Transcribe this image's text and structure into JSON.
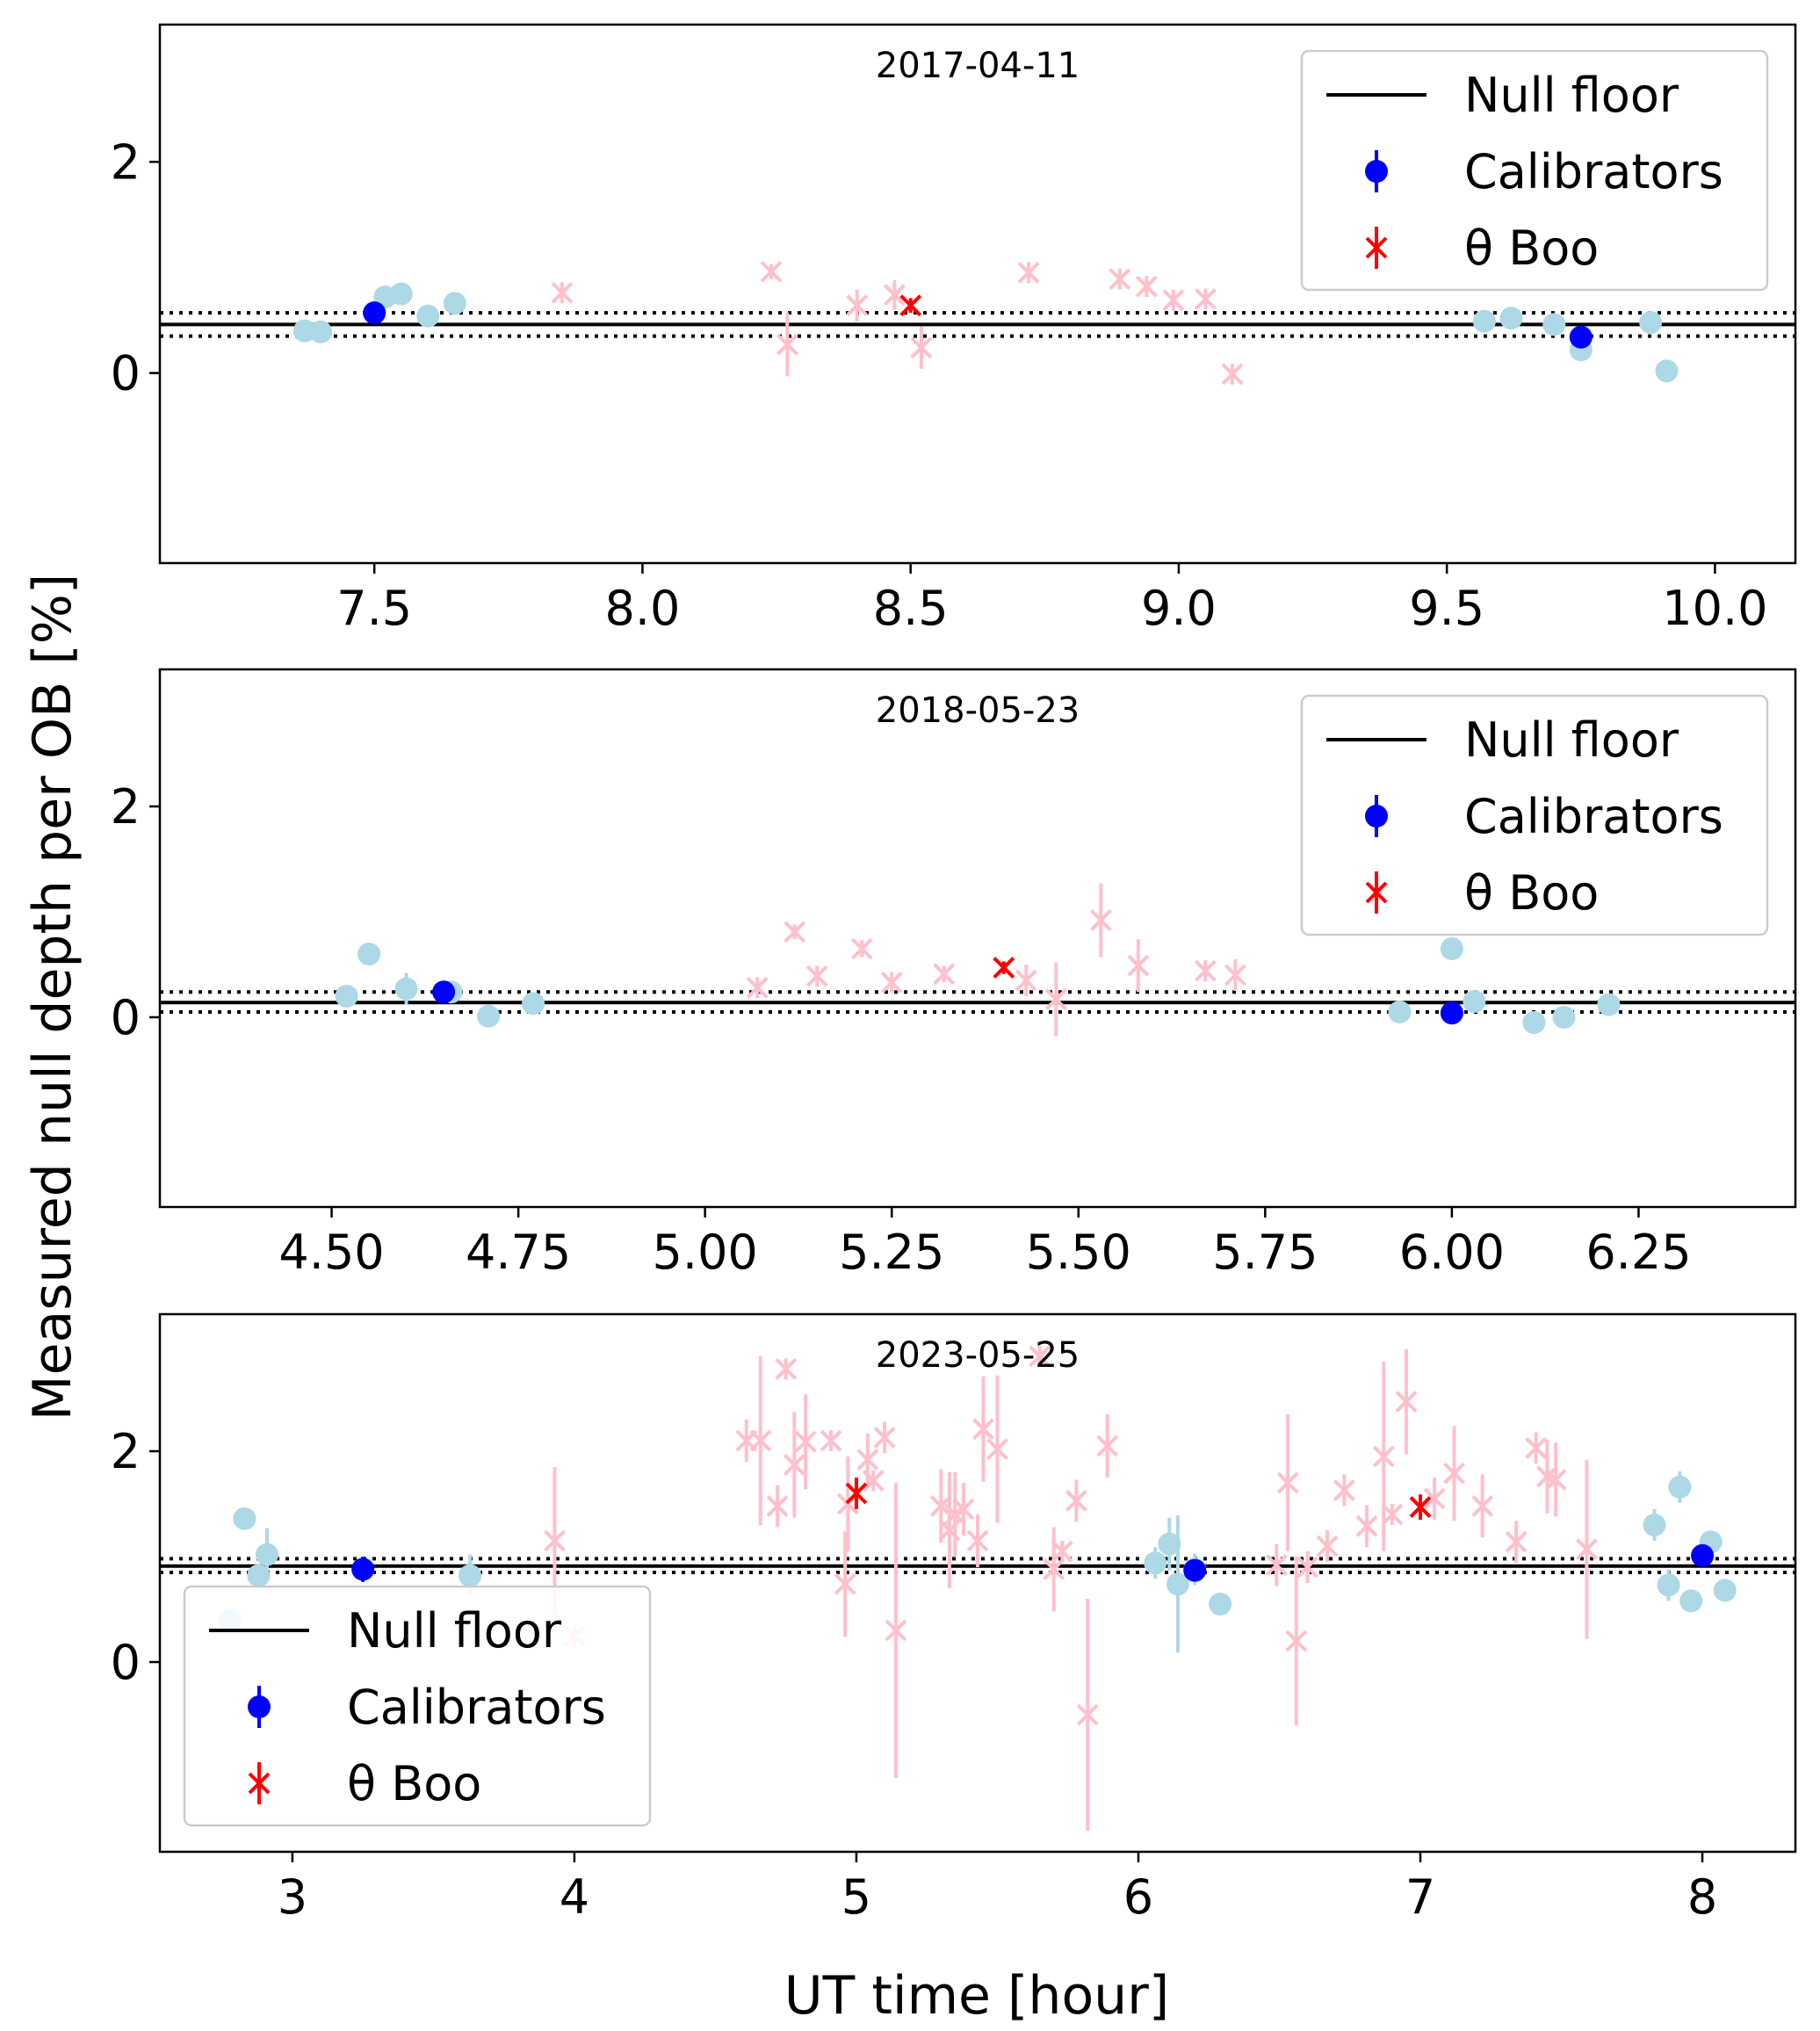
{
  "figure": {
    "ylabel": "Measured null depth per OB [%]",
    "xlabel": "UT time [hour]"
  },
  "legend": {
    "null_floor": "Null floor",
    "calibrators": "Calibrators",
    "target": "θ Boo"
  },
  "colors": {
    "calibrator": "#0000ff",
    "calibrator_faded": "#add8e6",
    "target": "#ff0000",
    "target_faded": "#ffc0cb",
    "floor": "#000000"
  },
  "chart_data": [
    {
      "type": "scatter",
      "title": "2017-04-11",
      "xlim": [
        7.1,
        10.15
      ],
      "ylim": [
        -1.8,
        3.3
      ],
      "xticks": [
        7.5,
        8.0,
        8.5,
        9.0,
        9.5,
        10.0
      ],
      "xtick_labels": [
        "7.5",
        "8.0",
        "8.5",
        "9.0",
        "9.5",
        "10.0"
      ],
      "yticks": [
        0,
        2
      ],
      "ytick_labels": [
        "0",
        "2"
      ],
      "legend_position": "top-right",
      "null_floor": {
        "value": 0.46,
        "lower": 0.35,
        "upper": 0.57
      },
      "series": [
        {
          "name": "Calibrators",
          "role": "calibrator",
          "faded": true,
          "marker": "o",
          "x": [
            7.37,
            7.4,
            7.52,
            7.55,
            7.6,
            7.65,
            9.57,
            9.62,
            9.7,
            9.75,
            9.88,
            9.91
          ],
          "y": [
            0.4,
            0.39,
            0.72,
            0.75,
            0.54,
            0.66,
            0.49,
            0.52,
            0.46,
            0.22,
            0.48,
            0.02
          ],
          "err": [
            0.06,
            0.05,
            0.05,
            0.05,
            0.06,
            0.05,
            0.05,
            0.05,
            0.05,
            0.05,
            0.05,
            0.05
          ]
        },
        {
          "name": "θ Boo",
          "role": "target",
          "faded": true,
          "marker": "x",
          "x": [
            7.85,
            8.24,
            8.27,
            8.4,
            8.47,
            8.52,
            8.72,
            8.89,
            8.94,
            8.99,
            9.05,
            9.1
          ],
          "y": [
            0.76,
            0.96,
            0.27,
            0.64,
            0.74,
            0.24,
            0.95,
            0.89,
            0.82,
            0.69,
            0.7,
            -0.01
          ],
          "err": [
            0.1,
            0.07,
            0.3,
            0.15,
            0.14,
            0.2,
            0.1,
            0.1,
            0.1,
            0.1,
            0.1,
            0.1
          ]
        },
        {
          "name": "Calibrators",
          "role": "calibrator",
          "faded": false,
          "marker": "o",
          "x": [
            7.5,
            9.75
          ],
          "y": [
            0.57,
            0.34
          ],
          "err": [
            0.04,
            0.05
          ]
        },
        {
          "name": "θ Boo",
          "role": "target",
          "faded": false,
          "marker": "x",
          "x": [
            8.5
          ],
          "y": [
            0.64
          ],
          "err": [
            0.07
          ]
        }
      ]
    },
    {
      "type": "scatter",
      "title": "2018-05-23",
      "xlim": [
        4.27,
        6.46
      ],
      "ylim": [
        -1.8,
        3.3
      ],
      "xticks": [
        4.5,
        4.75,
        5.0,
        5.25,
        5.5,
        5.75,
        6.0,
        6.25
      ],
      "xtick_labels": [
        "4.50",
        "4.75",
        "5.00",
        "5.25",
        "5.50",
        "5.75",
        "6.00",
        "6.25"
      ],
      "yticks": [
        0,
        2
      ],
      "ytick_labels": [
        "0",
        "2"
      ],
      "legend_position": "top-right",
      "null_floor": {
        "value": 0.14,
        "lower": 0.05,
        "upper": 0.24
      },
      "series": [
        {
          "name": "Calibrators",
          "role": "calibrator",
          "faded": true,
          "marker": "o",
          "x": [
            4.52,
            4.55,
            4.6,
            4.66,
            4.71,
            4.77,
            5.93,
            6.0,
            6.03,
            6.11,
            6.15,
            6.21
          ],
          "y": [
            0.2,
            0.6,
            0.27,
            0.24,
            0.01,
            0.13,
            0.05,
            0.65,
            0.15,
            -0.05,
            0.0,
            0.12
          ],
          "err": [
            0.05,
            0.07,
            0.15,
            0.05,
            0.1,
            0.06,
            0.05,
            0.05,
            0.08,
            0.05,
            0.05,
            0.06
          ]
        },
        {
          "name": "θ Boo",
          "role": "target",
          "faded": true,
          "marker": "x",
          "x": [
            5.07,
            5.12,
            5.15,
            5.21,
            5.25,
            5.32,
            5.43,
            5.47,
            5.53,
            5.58,
            5.67,
            5.71
          ],
          "y": [
            0.28,
            0.81,
            0.39,
            0.65,
            0.33,
            0.41,
            0.35,
            0.17,
            0.92,
            0.49,
            0.44,
            0.4
          ],
          "err": [
            0.1,
            0.07,
            0.1,
            0.08,
            0.1,
            0.08,
            0.15,
            0.35,
            0.35,
            0.25,
            0.1,
            0.15
          ]
        },
        {
          "name": "Calibrators",
          "role": "calibrator",
          "faded": false,
          "marker": "o",
          "x": [
            4.65,
            6.0
          ],
          "y": [
            0.24,
            0.04
          ],
          "err": [
            0.04,
            0.04
          ]
        },
        {
          "name": "θ Boo",
          "role": "target",
          "faded": false,
          "marker": "x",
          "x": [
            5.4
          ],
          "y": [
            0.47
          ],
          "err": [
            0.06
          ]
        }
      ]
    },
    {
      "type": "scatter",
      "title": "2023-05-25",
      "xlim": [
        2.53,
        8.33
      ],
      "ylim": [
        -1.8,
        3.3
      ],
      "xticks": [
        3,
        4,
        5,
        6,
        7,
        8
      ],
      "xtick_labels": [
        "3",
        "4",
        "5",
        "6",
        "7",
        "8"
      ],
      "yticks": [
        0,
        2
      ],
      "ytick_labels": [
        "0",
        "2"
      ],
      "legend_position": "bottom-left",
      "null_floor": {
        "value": 0.91,
        "lower": 0.85,
        "upper": 0.98
      },
      "series": [
        {
          "name": "Calibrators",
          "role": "calibrator",
          "faded": true,
          "marker": "o",
          "x": [
            2.78,
            2.83,
            2.88,
            2.91,
            3.63,
            6.06,
            6.11,
            6.14,
            6.2,
            6.29,
            7.83,
            7.88,
            7.92,
            7.96,
            8.03,
            8.08
          ],
          "y": [
            0.4,
            1.36,
            0.82,
            1.02,
            0.82,
            0.94,
            1.12,
            0.74,
            0.88,
            0.55,
            1.3,
            0.73,
            1.66,
            0.58,
            1.14,
            0.68
          ],
          "err": [
            0.1,
            0.08,
            0.08,
            0.25,
            0.2,
            0.15,
            0.25,
            0.65,
            0.15,
            0.07,
            0.15,
            0.15,
            0.15,
            0.07,
            0.07,
            0.07
          ]
        },
        {
          "name": "θ Boo",
          "role": "target",
          "faded": true,
          "marker": "x",
          "x": [
            3.93,
            4.0,
            4.61,
            4.66,
            4.72,
            4.75,
            4.78,
            4.82,
            4.91,
            4.96,
            4.97,
            5.04,
            5.06,
            5.1,
            5.14,
            5.3,
            5.33,
            5.35,
            5.38,
            5.43,
            5.45,
            5.5,
            5.65,
            5.7,
            5.73,
            5.78,
            5.82,
            5.89,
            6.49,
            6.53,
            6.56,
            6.6,
            6.67,
            6.73,
            6.81,
            6.87,
            6.9,
            6.95,
            7.05,
            7.12,
            7.22,
            7.34,
            7.41,
            7.45,
            7.48,
            7.59
          ],
          "y": [
            1.15,
            0.25,
            2.1,
            2.1,
            1.48,
            2.78,
            1.87,
            2.09,
            2.1,
            0.74,
            1.5,
            1.92,
            1.72,
            2.13,
            0.3,
            1.48,
            1.25,
            1.4,
            1.45,
            1.15,
            2.21,
            2.02,
            2.9,
            0.88,
            1.05,
            1.53,
            -0.5,
            2.05,
            0.92,
            1.7,
            0.2,
            0.9,
            1.1,
            1.63,
            1.29,
            1.95,
            1.4,
            2.47,
            1.55,
            1.79,
            1.48,
            1.14,
            2.03,
            1.76,
            1.73,
            1.07
          ],
          "err": [
            0.7,
            0.1,
            0.2,
            0.8,
            0.2,
            0.1,
            0.5,
            0.45,
            0.1,
            0.5,
            0.45,
            0.25,
            0.1,
            0.15,
            1.4,
            0.35,
            0.55,
            0.4,
            0.25,
            0.25,
            0.5,
            0.7,
            0.1,
            0.4,
            0.1,
            0.2,
            1.1,
            0.3,
            0.2,
            0.65,
            0.8,
            0.15,
            0.15,
            0.15,
            0.2,
            0.9,
            0.1,
            0.5,
            0.2,
            0.45,
            0.3,
            0.2,
            0.15,
            0.35,
            0.35,
            0.85
          ]
        },
        {
          "name": "Calibrators",
          "role": "calibrator",
          "faded": false,
          "marker": "o",
          "x": [
            3.25,
            6.2,
            8.0
          ],
          "y": [
            0.88,
            0.87,
            1.01
          ],
          "err": [
            0.12,
            0.05,
            0.1
          ]
        },
        {
          "name": "θ Boo",
          "role": "target",
          "faded": false,
          "marker": "x",
          "x": [
            5.0,
            7.0
          ],
          "y": [
            1.6,
            1.47
          ],
          "err": [
            0.15,
            0.12
          ]
        }
      ]
    }
  ]
}
